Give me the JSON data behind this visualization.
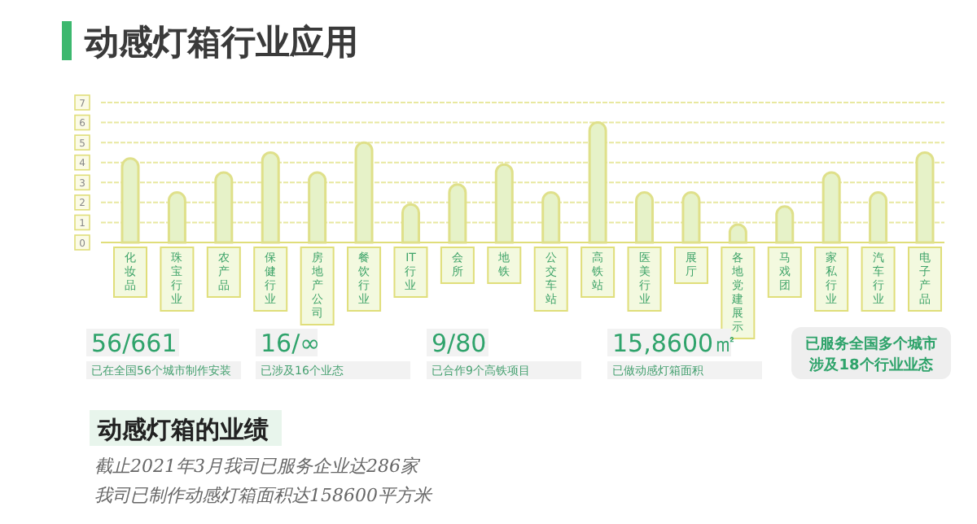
{
  "chart_data": {
    "type": "bar",
    "title": "动感灯箱行业应用",
    "categories": [
      "化妆品",
      "珠宝行业",
      "农产品",
      "保健行业",
      "房地产公司",
      "餐饮行业",
      "IT行业",
      "会所",
      "地铁",
      "公交车站",
      "高铁站",
      "医美行业",
      "展厅",
      "各地党建展示",
      "马戏团",
      "家私行业",
      "汽车行业",
      "电子产品"
    ],
    "values": [
      4.2,
      2.5,
      3.5,
      4.5,
      3.5,
      5.0,
      1.9,
      2.9,
      3.9,
      2.5,
      6.0,
      2.5,
      2.5,
      0.9,
      1.8,
      3.5,
      2.5,
      4.5
    ],
    "color": "#e6f2c8",
    "ylim": [
      0,
      7
    ],
    "yticks": [
      0,
      1,
      2,
      3,
      4,
      5,
      6,
      7
    ],
    "grid": "y",
    "annotations": [
      "56/661",
      "已在全国56个城市制作安装",
      "16/∞",
      "已涉及16个业态",
      "9/80",
      "已合作9个高铁项目",
      "15,8600㎡",
      "已做动感灯箱面积",
      "已服务全国多个城市",
      "涉及18个行业业态",
      "动感灯箱的业绩",
      "截止2021年3月我司已服务企业达286家",
      "我司已制作动感灯箱面积达158600平方米"
    ]
  }
}
